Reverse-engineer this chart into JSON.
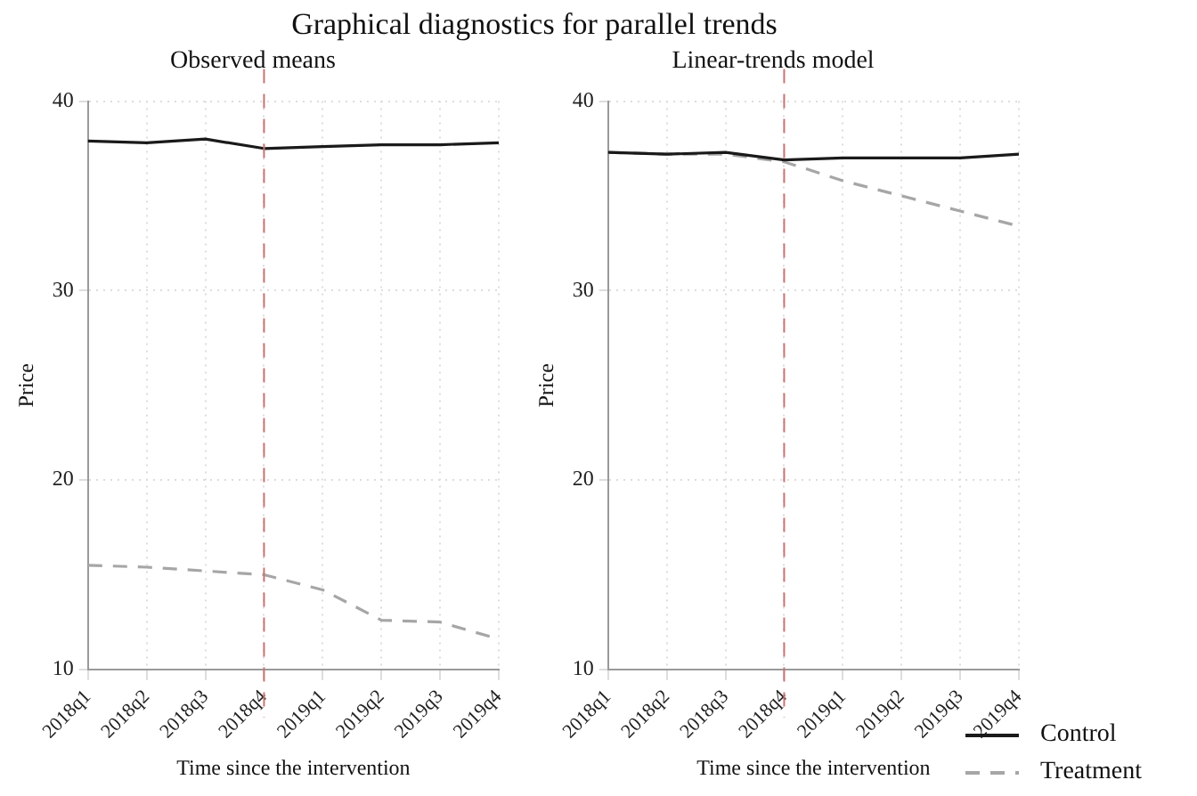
{
  "chart_data": [
    {
      "type": "line",
      "title": "Observed means",
      "annotations": [
        "Graphical diagnostics for parallel trends"
      ],
      "xlabel": "Time since the intervention",
      "ylabel": "Price",
      "categories": [
        "2018q1",
        "2018q2",
        "2018q3",
        "2018q4",
        "2019q1",
        "2019q2",
        "2019q3",
        "2019q4"
      ],
      "series": [
        {
          "color": "#1a1a1a",
          "line_style": "solid",
          "values": [
            37.9,
            37.8,
            38.0,
            37.5,
            37.6,
            37.7,
            37.7,
            37.8
          ]
        },
        {
          "color": "#a6a6a6",
          "line_style": "dashed",
          "values": [
            15.5,
            15.4,
            15.2,
            15.0,
            14.2,
            12.6,
            12.5,
            11.6
          ]
        }
      ],
      "ylim": [
        10,
        40
      ],
      "yticks": [
        10,
        20,
        30,
        40
      ],
      "grid": true,
      "marker": "none",
      "legend": false,
      "ref_lines": [
        {
          "axis": "x",
          "value": "2018q4",
          "color": "#c87474",
          "line_style": "dashed"
        }
      ]
    },
    {
      "type": "line",
      "title": "Linear-trends model",
      "xlabel": "Time since the intervention",
      "ylabel": "Price",
      "categories": [
        "2018q1",
        "2018q2",
        "2018q3",
        "2018q4",
        "2019q1",
        "2019q2",
        "2019q3",
        "2019q4"
      ],
      "series": [
        {
          "name": "Control",
          "color": "#1a1a1a",
          "line_style": "solid",
          "values": [
            37.3,
            37.2,
            37.3,
            36.9,
            37.0,
            37.0,
            37.0,
            37.2
          ]
        },
        {
          "name": "Treatment",
          "color": "#a6a6a6",
          "line_style": "dashed",
          "values": [
            37.3,
            37.2,
            37.2,
            36.8,
            35.8,
            35.0,
            34.2,
            33.4
          ]
        }
      ],
      "ylim": [
        10,
        40
      ],
      "yticks": [
        10,
        20,
        30,
        40
      ],
      "grid": true,
      "marker": "none",
      "legend": "bottom right",
      "ref_lines": [
        {
          "axis": "x",
          "value": "2018q4",
          "color": "#c87474",
          "line_style": "dashed"
        }
      ]
    }
  ]
}
